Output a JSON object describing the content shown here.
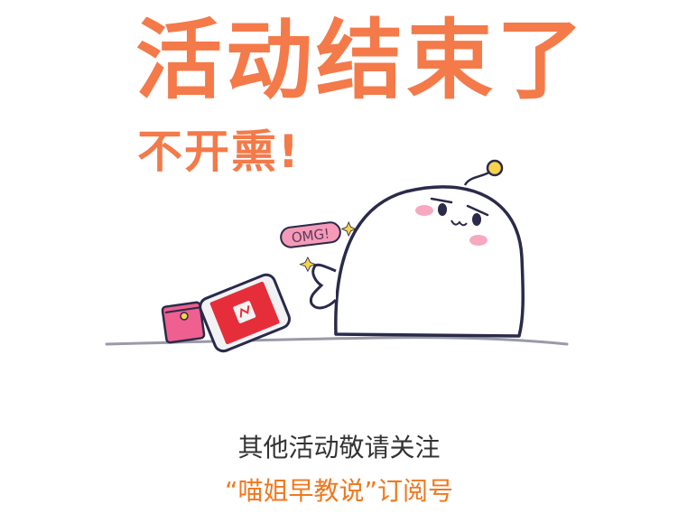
{
  "title": "活动结束了",
  "subtitle": "不开熏!",
  "bubble_text": "OMG!",
  "footer": {
    "line1": "其他活动敬请关注",
    "line2": "“喵姐早教说”订阅号"
  },
  "colors": {
    "title": "#f47a4a",
    "footer_text": "#333333",
    "footer_highlight": "#f0781e",
    "bubble": "#f59ab8",
    "envelope": "#ee5a8a",
    "phone_screen": "#e62e3a",
    "character_outline": "#2a2a4a"
  }
}
